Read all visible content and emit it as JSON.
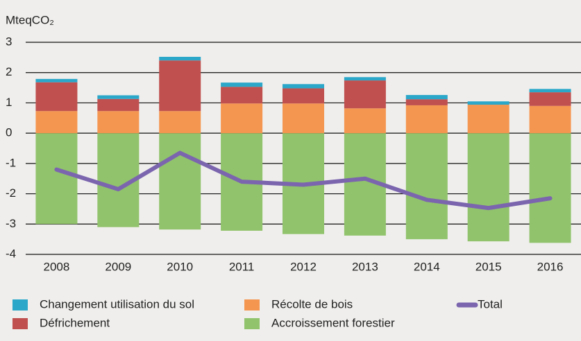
{
  "chart_data": {
    "type": "bar",
    "subtitle": "MteqCO₂",
    "categories": [
      "2008",
      "2009",
      "2010",
      "2011",
      "2012",
      "2013",
      "2014",
      "2015",
      "2016"
    ],
    "series": [
      {
        "name": "Accroissement forestier",
        "color": "#91c36c",
        "values": [
          -3.0,
          -3.1,
          -3.18,
          -3.22,
          -3.33,
          -3.38,
          -3.5,
          -3.57,
          -3.62
        ]
      },
      {
        "name": "Récolte de bois",
        "color": "#f59650",
        "values": [
          0.73,
          0.73,
          0.73,
          0.98,
          0.98,
          0.82,
          0.92,
          0.94,
          0.9
        ]
      },
      {
        "name": "Défrichement",
        "color": "#c0504f",
        "values": [
          0.95,
          0.4,
          1.67,
          0.55,
          0.5,
          0.92,
          0.2,
          0,
          0.45
        ]
      },
      {
        "name": "Changement utilisation du sol",
        "color": "#2aa7c9",
        "values": [
          0.11,
          0.12,
          0.12,
          0.14,
          0.14,
          0.11,
          0.14,
          0.11,
          0.11
        ]
      },
      {
        "name": "Total",
        "type": "line",
        "color": "#7b65ae",
        "values": [
          -1.2,
          -1.85,
          -0.65,
          -1.6,
          -1.7,
          -1.5,
          -2.2,
          -2.47,
          -2.15
        ]
      }
    ],
    "ylim": [
      -4,
      3
    ],
    "yticks": [
      3,
      2,
      1,
      0,
      -1,
      -2,
      -3,
      -4
    ],
    "grid": true,
    "stacked": true,
    "legend": "bottom"
  }
}
